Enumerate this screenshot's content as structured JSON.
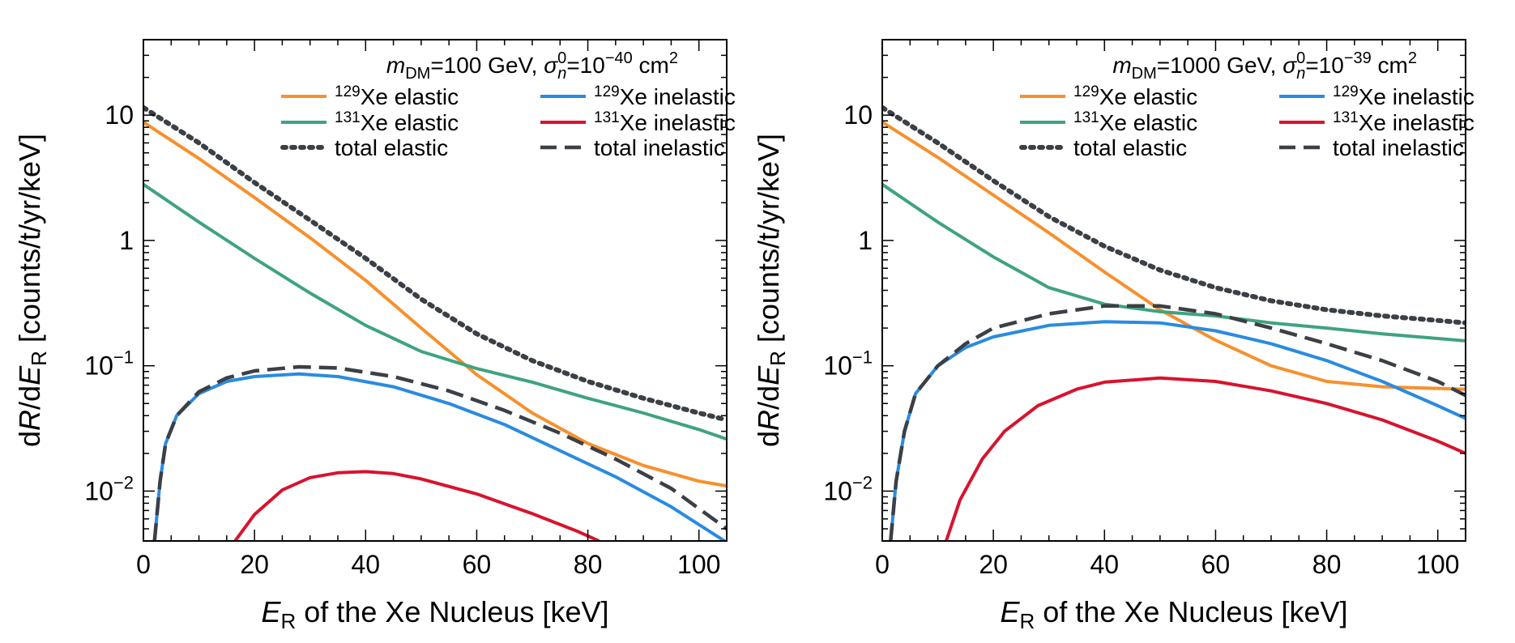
{
  "colors": {
    "xe129_elastic": "#f7902d",
    "xe129_inelastic": "#2a8be0",
    "xe131_elastic": "#3fa37f",
    "xe131_inelastic": "#d8132e",
    "total": "#3b3f46"
  },
  "chart_data": [
    {
      "type": "line",
      "title": "",
      "legend_title": "m_DM=100 GeV, σ_n^0=10^-40 cm^2",
      "legend_placement": "top-right",
      "xlabel": "E_R of the Xe Nucleus [keV]",
      "ylabel": "dR/dE_R [counts/t/yr/keV]",
      "xlim": [
        0,
        105
      ],
      "ylim": [
        0.004,
        40
      ],
      "yscale": "log",
      "xticks": [
        0,
        20,
        40,
        60,
        80,
        100
      ],
      "yticks": [
        {
          "value": 0.01,
          "label": "10^-2"
        },
        {
          "value": 0.1,
          "label": "10^-1"
        },
        {
          "value": 1,
          "label": "1"
        },
        {
          "value": 10,
          "label": "10"
        }
      ],
      "grid": false,
      "series": [
        {
          "name": "129Xe elastic",
          "color_key": "xe129_elastic",
          "style": "solid",
          "points": [
            [
              0,
              8.8
            ],
            [
              10,
              4.5
            ],
            [
              20,
              2.2
            ],
            [
              30,
              1.05
            ],
            [
              40,
              0.48
            ],
            [
              50,
              0.2
            ],
            [
              60,
              0.085
            ],
            [
              70,
              0.042
            ],
            [
              80,
              0.024
            ],
            [
              90,
              0.016
            ],
            [
              100,
              0.012
            ],
            [
              105,
              0.011
            ]
          ]
        },
        {
          "name": "131Xe elastic",
          "color_key": "xe131_elastic",
          "style": "solid",
          "points": [
            [
              0,
              2.8
            ],
            [
              10,
              1.4
            ],
            [
              20,
              0.72
            ],
            [
              30,
              0.38
            ],
            [
              40,
              0.21
            ],
            [
              50,
              0.13
            ],
            [
              60,
              0.095
            ],
            [
              70,
              0.074
            ],
            [
              80,
              0.055
            ],
            [
              90,
              0.042
            ],
            [
              100,
              0.031
            ],
            [
              105,
              0.026
            ]
          ]
        },
        {
          "name": "total elastic",
          "color_key": "total",
          "style": "dotted",
          "points": [
            [
              0,
              11.5
            ],
            [
              10,
              6.0
            ],
            [
              20,
              2.9
            ],
            [
              30,
              1.45
            ],
            [
              40,
              0.72
            ],
            [
              50,
              0.34
            ],
            [
              60,
              0.18
            ],
            [
              70,
              0.11
            ],
            [
              80,
              0.075
            ],
            [
              90,
              0.055
            ],
            [
              100,
              0.042
            ],
            [
              105,
              0.037
            ]
          ]
        },
        {
          "name": "129Xe inelastic",
          "color_key": "xe129_inelastic",
          "style": "solid",
          "points": [
            [
              2,
              0.004
            ],
            [
              3,
              0.012
            ],
            [
              4,
              0.024
            ],
            [
              6,
              0.04
            ],
            [
              10,
              0.06
            ],
            [
              15,
              0.075
            ],
            [
              20,
              0.082
            ],
            [
              28,
              0.086
            ],
            [
              35,
              0.082
            ],
            [
              45,
              0.068
            ],
            [
              55,
              0.05
            ],
            [
              65,
              0.034
            ],
            [
              75,
              0.021
            ],
            [
              85,
              0.013
            ],
            [
              95,
              0.0075
            ],
            [
              105,
              0.0039
            ]
          ]
        },
        {
          "name": "131Xe inelastic",
          "color_key": "xe131_inelastic",
          "style": "solid",
          "points": [
            [
              16.5,
              0.004
            ],
            [
              20,
              0.0065
            ],
            [
              25,
              0.0102
            ],
            [
              30,
              0.0128
            ],
            [
              35,
              0.014
            ],
            [
              40,
              0.0143
            ],
            [
              45,
              0.0138
            ],
            [
              50,
              0.0125
            ],
            [
              60,
              0.0095
            ],
            [
              70,
              0.0066
            ],
            [
              78,
              0.0048
            ],
            [
              82,
              0.004
            ]
          ]
        },
        {
          "name": "total inelastic",
          "color_key": "total",
          "style": "dashed",
          "points": [
            [
              2,
              0.004
            ],
            [
              3,
              0.012
            ],
            [
              4,
              0.024
            ],
            [
              6,
              0.04
            ],
            [
              10,
              0.062
            ],
            [
              15,
              0.08
            ],
            [
              20,
              0.091
            ],
            [
              28,
              0.098
            ],
            [
              35,
              0.096
            ],
            [
              45,
              0.082
            ],
            [
              55,
              0.063
            ],
            [
              65,
              0.044
            ],
            [
              75,
              0.029
            ],
            [
              85,
              0.018
            ],
            [
              95,
              0.0105
            ],
            [
              105,
              0.005
            ]
          ]
        }
      ]
    },
    {
      "type": "line",
      "title": "",
      "legend_title": "m_DM=1000 GeV, σ_n^0=10^-39 cm^2",
      "legend_placement": "top-right",
      "xlabel": "E_R of the Xe Nucleus [keV]",
      "ylabel": "dR/dE_R [counts/t/yr/keV]",
      "xlim": [
        0,
        105
      ],
      "ylim": [
        0.004,
        40
      ],
      "yscale": "log",
      "xticks": [
        0,
        20,
        40,
        60,
        80,
        100
      ],
      "yticks": [
        {
          "value": 0.01,
          "label": "10^-2"
        },
        {
          "value": 0.1,
          "label": "10^-1"
        },
        {
          "value": 1,
          "label": "1"
        },
        {
          "value": 10,
          "label": "10"
        }
      ],
      "grid": false,
      "series": [
        {
          "name": "129Xe elastic",
          "color_key": "xe129_elastic",
          "style": "solid",
          "points": [
            [
              0,
              8.8
            ],
            [
              10,
              4.6
            ],
            [
              20,
              2.3
            ],
            [
              30,
              1.15
            ],
            [
              40,
              0.56
            ],
            [
              50,
              0.28
            ],
            [
              60,
              0.16
            ],
            [
              70,
              0.1
            ],
            [
              80,
              0.075
            ],
            [
              90,
              0.068
            ],
            [
              100,
              0.066
            ],
            [
              105,
              0.065
            ]
          ]
        },
        {
          "name": "131Xe elastic",
          "color_key": "xe131_elastic",
          "style": "solid",
          "points": [
            [
              0,
              2.8
            ],
            [
              10,
              1.4
            ],
            [
              20,
              0.74
            ],
            [
              30,
              0.42
            ],
            [
              40,
              0.31
            ],
            [
              50,
              0.27
            ],
            [
              60,
              0.25
            ],
            [
              70,
              0.22
            ],
            [
              80,
              0.2
            ],
            [
              90,
              0.18
            ],
            [
              100,
              0.165
            ],
            [
              105,
              0.158
            ]
          ]
        },
        {
          "name": "total elastic",
          "color_key": "total",
          "style": "dotted",
          "points": [
            [
              0,
              11.5
            ],
            [
              10,
              6.0
            ],
            [
              20,
              3.0
            ],
            [
              30,
              1.55
            ],
            [
              40,
              0.9
            ],
            [
              50,
              0.58
            ],
            [
              60,
              0.42
            ],
            [
              70,
              0.33
            ],
            [
              80,
              0.28
            ],
            [
              90,
              0.25
            ],
            [
              100,
              0.23
            ],
            [
              105,
              0.22
            ]
          ]
        },
        {
          "name": "129Xe inelastic",
          "color_key": "xe129_inelastic",
          "style": "solid",
          "points": [
            [
              1.5,
              0.004
            ],
            [
              2.5,
              0.012
            ],
            [
              4,
              0.03
            ],
            [
              6,
              0.06
            ],
            [
              10,
              0.1
            ],
            [
              15,
              0.14
            ],
            [
              20,
              0.17
            ],
            [
              30,
              0.21
            ],
            [
              40,
              0.225
            ],
            [
              50,
              0.22
            ],
            [
              60,
              0.19
            ],
            [
              70,
              0.15
            ],
            [
              80,
              0.11
            ],
            [
              90,
              0.075
            ],
            [
              100,
              0.048
            ],
            [
              105,
              0.038
            ]
          ]
        },
        {
          "name": "131Xe inelastic",
          "color_key": "xe131_inelastic",
          "style": "solid",
          "points": [
            [
              11.5,
              0.004
            ],
            [
              14,
              0.0085
            ],
            [
              18,
              0.018
            ],
            [
              22,
              0.03
            ],
            [
              28,
              0.048
            ],
            [
              35,
              0.065
            ],
            [
              40,
              0.074
            ],
            [
              50,
              0.08
            ],
            [
              60,
              0.075
            ],
            [
              70,
              0.063
            ],
            [
              80,
              0.05
            ],
            [
              90,
              0.037
            ],
            [
              100,
              0.025
            ],
            [
              105,
              0.02
            ]
          ]
        },
        {
          "name": "total inelastic",
          "color_key": "total",
          "style": "dashed",
          "points": [
            [
              1.5,
              0.004
            ],
            [
              2.5,
              0.012
            ],
            [
              4,
              0.03
            ],
            [
              6,
              0.06
            ],
            [
              10,
              0.1
            ],
            [
              15,
              0.15
            ],
            [
              20,
              0.2
            ],
            [
              30,
              0.26
            ],
            [
              40,
              0.3
            ],
            [
              50,
              0.3
            ],
            [
              60,
              0.26
            ],
            [
              70,
              0.2
            ],
            [
              80,
              0.15
            ],
            [
              90,
              0.11
            ],
            [
              100,
              0.075
            ],
            [
              105,
              0.058
            ]
          ]
        }
      ]
    }
  ]
}
